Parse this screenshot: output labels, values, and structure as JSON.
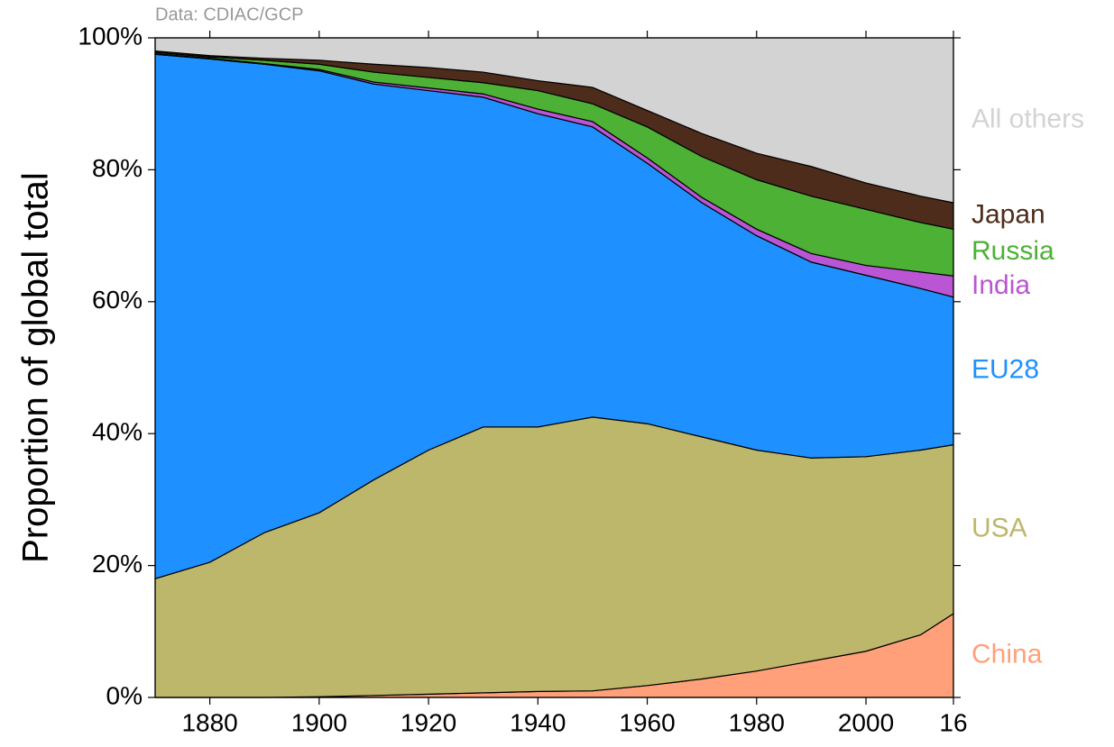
{
  "chart_data": {
    "type": "stacked_area",
    "source": "Data: CDIAC/GCP",
    "y_label": "Proportion of global total",
    "x": [
      1870,
      1880,
      1890,
      1900,
      1910,
      1920,
      1930,
      1940,
      1950,
      1960,
      1970,
      1980,
      1990,
      2000,
      2010,
      2016
    ],
    "series": [
      {
        "name": "China",
        "color": "#ffa07a",
        "values": [
          0,
          0,
          0,
          0.1,
          0.3,
          0.5,
          0.7,
          0.9,
          1,
          1.8,
          2.8,
          4,
          5.5,
          7,
          9.5,
          12.7
        ]
      },
      {
        "name": "USA",
        "color": "#bdb76b",
        "values": [
          18,
          20.5,
          25,
          27.9,
          32.7,
          37,
          40.3,
          40.1,
          41.5,
          39.7,
          36.7,
          33.5,
          30.8,
          29.5,
          28,
          25.6
        ]
      },
      {
        "name": "EU28",
        "color": "#1e90ff",
        "values": [
          79.5,
          76.3,
          71,
          67,
          60,
          54.5,
          50,
          47.5,
          44,
          39.5,
          35.5,
          32.5,
          29.7,
          27.5,
          24.5,
          22.4
        ]
      },
      {
        "name": "India",
        "color": "#ba55d3",
        "values": [
          0.1,
          0.1,
          0.1,
          0.2,
          0.3,
          0.4,
          0.5,
          0.7,
          0.8,
          0.8,
          0.8,
          1,
          1.3,
          1.5,
          2.5,
          3.2
        ]
      },
      {
        "name": "Russia",
        "color": "#4cb135",
        "values": [
          0.2,
          0.2,
          0.5,
          0.8,
          1.5,
          1.6,
          1.7,
          2.8,
          2.7,
          4.7,
          6.2,
          7.5,
          8.7,
          8.5,
          7.5,
          7.1
        ]
      },
      {
        "name": "Japan",
        "color": "#4e2c1b",
        "values": [
          0.2,
          0.2,
          0.3,
          0.6,
          1.2,
          1.5,
          1.6,
          1.5,
          2.5,
          2.5,
          3.5,
          4,
          4.5,
          4,
          4,
          4
        ]
      },
      {
        "name": "All others",
        "color": "#d3d3d3",
        "values": [
          2,
          2.7,
          3.1,
          3.4,
          4,
          4.5,
          5.2,
          6.5,
          7.5,
          11,
          14.5,
          17.5,
          19.5,
          22,
          24,
          25
        ]
      }
    ],
    "xlim": [
      1870,
      2016
    ],
    "xticks": [
      1880,
      1900,
      1920,
      1940,
      1960,
      1980,
      2000,
      {
        "value": 2016,
        "label": "16"
      }
    ],
    "ylim": [
      0,
      100
    ],
    "yticks": [
      {
        "value": 0,
        "label": "0%"
      },
      {
        "value": 20,
        "label": "20%"
      },
      {
        "value": 40,
        "label": "40%"
      },
      {
        "value": 60,
        "label": "60%"
      },
      {
        "value": 80,
        "label": "80%"
      },
      {
        "value": 100,
        "label": "100%"
      }
    ]
  }
}
